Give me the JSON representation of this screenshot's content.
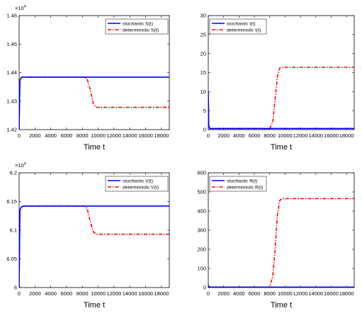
{
  "chart_data": [
    {
      "type": "line",
      "xlabel": "Time t",
      "xlim": [
        0,
        19000
      ],
      "xticks": [
        0,
        2000,
        4000,
        6000,
        8000,
        10000,
        12000,
        14000,
        16000,
        18000
      ],
      "ylim": [
        1.42,
        1.46
      ],
      "yticks": [
        "1.42",
        "1.43",
        "1.44",
        "1.45",
        "1.46"
      ],
      "yexponent_base": "10",
      "yexponent_power": "4",
      "legend": "top-right",
      "series": [
        {
          "name": "stochastic S(t)",
          "color": "#0000ff",
          "style": "solid",
          "points": [
            [
              0,
              1.42
            ],
            [
              100,
              1.4375
            ],
            [
              300,
              1.4383
            ],
            [
              600,
              1.4384
            ],
            [
              19000,
              1.4384
            ]
          ]
        },
        {
          "name": "deterministic S(t)",
          "color": "#ff0000",
          "style": "dashdot",
          "points": [
            [
              0,
              1.42
            ],
            [
              100,
              1.4375
            ],
            [
              300,
              1.4383
            ],
            [
              600,
              1.4384
            ],
            [
              8200,
              1.4384
            ],
            [
              8600,
              1.4378
            ],
            [
              9000,
              1.434
            ],
            [
              9400,
              1.429
            ],
            [
              9800,
              1.4278
            ],
            [
              19000,
              1.4278
            ]
          ]
        }
      ]
    },
    {
      "type": "line",
      "xlabel": "Time t",
      "xlim": [
        0,
        19000
      ],
      "xticks": [
        0,
        2000,
        4000,
        6000,
        8000,
        10000,
        12000,
        14000,
        16000,
        18000
      ],
      "ylim": [
        0,
        30
      ],
      "yticks": [
        "0",
        "5",
        "10",
        "15",
        "20",
        "25",
        "30"
      ],
      "legend": "top-left",
      "series": [
        {
          "name": "stochastic I(t)",
          "color": "#0000ff",
          "style": "solid",
          "points": [
            [
              0,
              10
            ],
            [
              60,
              1
            ],
            [
              200,
              0.3
            ],
            [
              19000,
              0.3
            ]
          ]
        },
        {
          "name": "deterministic I(t)",
          "color": "#ff0000",
          "style": "dashdot",
          "points": [
            [
              0,
              10
            ],
            [
              60,
              1
            ],
            [
              200,
              0.3
            ],
            [
              8000,
              0.3
            ],
            [
              8400,
              2
            ],
            [
              8700,
              8
            ],
            [
              9000,
              14
            ],
            [
              9300,
              16.2
            ],
            [
              9600,
              16.4
            ],
            [
              19000,
              16.4
            ]
          ]
        }
      ]
    },
    {
      "type": "line",
      "xlabel": "Time t",
      "xlim": [
        0,
        19000
      ],
      "xticks": [
        0,
        2000,
        4000,
        6000,
        8000,
        10000,
        12000,
        14000,
        16000,
        18000
      ],
      "ylim": [
        6.0,
        6.2
      ],
      "yticks": [
        "6",
        "6.05",
        "6.1",
        "6.15",
        "6.2"
      ],
      "yexponent_base": "10",
      "yexponent_power": "4",
      "legend": "top-right",
      "series": [
        {
          "name": "stochastic V(t)",
          "color": "#0000ff",
          "style": "solid",
          "points": [
            [
              0,
              6.0
            ],
            [
              100,
              6.135
            ],
            [
              300,
              6.141
            ],
            [
              600,
              6.142
            ],
            [
              19000,
              6.142
            ]
          ]
        },
        {
          "name": "deterministic V(t)",
          "color": "#ff0000",
          "style": "dashdot",
          "points": [
            [
              0,
              6.0
            ],
            [
              100,
              6.135
            ],
            [
              300,
              6.141
            ],
            [
              600,
              6.142
            ],
            [
              8200,
              6.142
            ],
            [
              8600,
              6.138
            ],
            [
              9000,
              6.115
            ],
            [
              9400,
              6.097
            ],
            [
              9800,
              6.093
            ],
            [
              19000,
              6.093
            ]
          ]
        }
      ]
    },
    {
      "type": "line",
      "xlabel": "Time t",
      "xlim": [
        0,
        19000
      ],
      "xticks": [
        0,
        2000,
        4000,
        6000,
        8000,
        10000,
        12000,
        14000,
        16000,
        18000
      ],
      "ylim": [
        0,
        600
      ],
      "yticks": [
        "0",
        "100",
        "200",
        "300",
        "400",
        "500",
        "600"
      ],
      "legend": "top-left",
      "series": [
        {
          "name": "stochastic R(t)",
          "color": "#0000ff",
          "style": "solid",
          "points": [
            [
              0,
              12
            ],
            [
              80,
              5
            ],
            [
              300,
              2
            ],
            [
              19000,
              2
            ]
          ]
        },
        {
          "name": "deterministic R(t)",
          "color": "#ff0000",
          "style": "dashdot",
          "points": [
            [
              0,
              12
            ],
            [
              80,
              5
            ],
            [
              300,
              2
            ],
            [
              8000,
              2
            ],
            [
              8400,
              60
            ],
            [
              8700,
              200
            ],
            [
              9000,
              380
            ],
            [
              9300,
              455
            ],
            [
              9600,
              465
            ],
            [
              19000,
              465
            ]
          ]
        }
      ]
    }
  ]
}
